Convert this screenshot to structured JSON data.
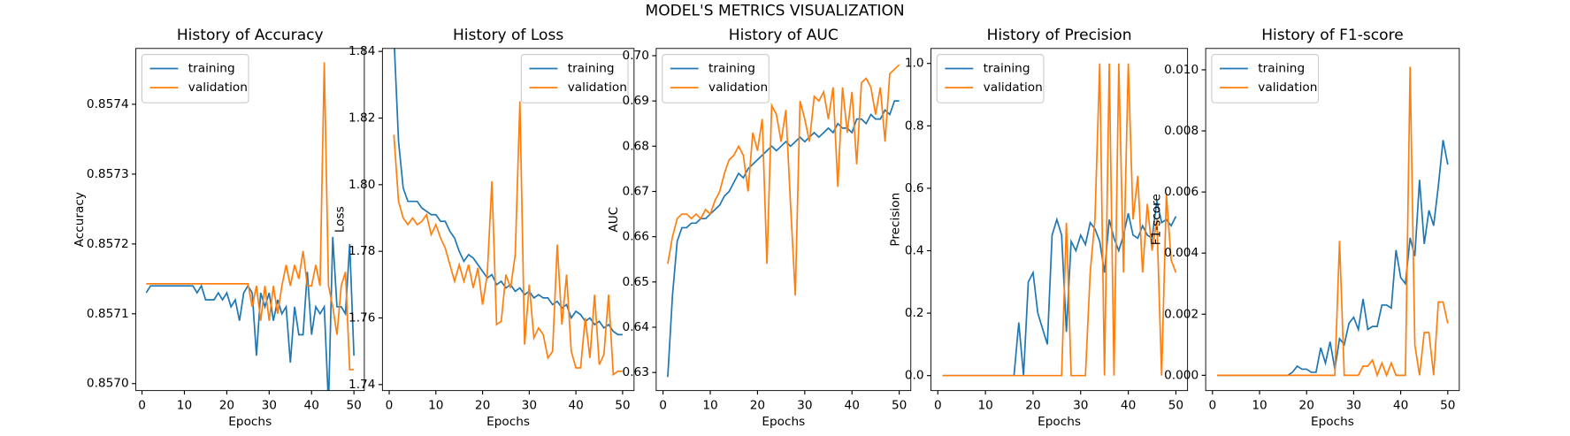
{
  "title": "MODEL'S METRICS VISUALIZATION",
  "chart_data": [
    {
      "type": "line",
      "title": "History of Accuracy",
      "x_label": "Epochs",
      "y_label": "Accuracy",
      "legend": "upper left",
      "x": [
        1,
        2,
        3,
        4,
        5,
        6,
        7,
        8,
        9,
        10,
        11,
        12,
        13,
        14,
        15,
        16,
        17,
        18,
        19,
        20,
        21,
        22,
        23,
        24,
        25,
        26,
        27,
        28,
        29,
        30,
        31,
        32,
        33,
        34,
        35,
        36,
        37,
        38,
        39,
        40,
        41,
        42,
        43,
        44,
        45,
        46,
        47,
        48,
        49,
        50
      ],
      "xlim": [
        -1.45,
        52.45
      ],
      "xticks": [
        0,
        10,
        20,
        30,
        40,
        50
      ],
      "ylim": [
        0.85699,
        0.85748
      ],
      "yticks": [
        {
          "value": 0.857,
          "label": "0.8570"
        },
        0.8571,
        0.8572,
        0.8573,
        0.8574
      ],
      "series": [
        {
          "name": "training",
          "color": "#1f77b4",
          "values": [
            0.85713,
            0.85714,
            0.85714,
            0.85714,
            0.85714,
            0.85714,
            0.85714,
            0.85714,
            0.85714,
            0.85714,
            0.85714,
            0.85714,
            0.85713,
            0.85714,
            0.85712,
            0.85712,
            0.85712,
            0.85713,
            0.85712,
            0.85713,
            0.85711,
            0.85712,
            0.85709,
            0.85713,
            0.85714,
            0.85713,
            0.85704,
            0.85713,
            0.85711,
            0.85713,
            0.85709,
            0.85712,
            0.8571,
            0.85711,
            0.85703,
            0.85711,
            0.85707,
            0.85707,
            0.85716,
            0.85707,
            0.85711,
            0.8571,
            0.85711,
            0.85697,
            0.85721,
            0.85711,
            0.85711,
            0.8571,
            0.8572,
            0.85704
          ]
        },
        {
          "name": "validation",
          "color": "#ff7f0e",
          "values": [
            0.857143,
            0.857143,
            0.857143,
            0.857143,
            0.857143,
            0.857143,
            0.857143,
            0.857143,
            0.857143,
            0.857143,
            0.857143,
            0.857143,
            0.857143,
            0.857143,
            0.857143,
            0.857143,
            0.857143,
            0.857143,
            0.857143,
            0.857143,
            0.857143,
            0.857143,
            0.857143,
            0.857143,
            0.857143,
            0.85711,
            0.85714,
            0.85709,
            0.85714,
            0.85709,
            0.85714,
            0.8571,
            0.85714,
            0.85717,
            0.85714,
            0.85717,
            0.85715,
            0.85719,
            0.85714,
            0.85714,
            0.85717,
            0.85714,
            0.85746,
            0.85714,
            0.85711,
            0.85707,
            0.85714,
            0.85716,
            0.85702,
            0.85702
          ]
        }
      ]
    },
    {
      "type": "line",
      "title": "History of Loss",
      "x_label": "Epochs",
      "y_label": "Loss",
      "legend": "upper right",
      "x": [
        1,
        2,
        3,
        4,
        5,
        6,
        7,
        8,
        9,
        10,
        11,
        12,
        13,
        14,
        15,
        16,
        17,
        18,
        19,
        20,
        21,
        22,
        23,
        24,
        25,
        26,
        27,
        28,
        29,
        30,
        31,
        32,
        33,
        34,
        35,
        36,
        37,
        38,
        39,
        40,
        41,
        42,
        43,
        44,
        45,
        46,
        47,
        48,
        49,
        50
      ],
      "xlim": [
        -1.45,
        52.45
      ],
      "xticks": [
        0,
        10,
        20,
        30,
        40,
        50
      ],
      "ylim": [
        1.7382,
        1.8409
      ],
      "yticks": [
        1.74,
        1.76,
        1.78,
        {
          "value": 1.8,
          "label": "1.80"
        },
        1.82,
        1.84
      ],
      "series": [
        {
          "name": "training",
          "color": "#1f77b4",
          "values": [
            1.845,
            1.813,
            1.799,
            1.795,
            1.795,
            1.795,
            1.793,
            1.792,
            1.791,
            1.791,
            1.789,
            1.789,
            1.786,
            1.784,
            1.78,
            1.777,
            1.779,
            1.778,
            1.776,
            1.774,
            1.772,
            1.773,
            1.77,
            1.771,
            1.769,
            1.77,
            1.768,
            1.769,
            1.767,
            1.768,
            1.766,
            1.767,
            1.766,
            1.766,
            1.764,
            1.765,
            1.763,
            1.764,
            1.76,
            1.762,
            1.761,
            1.759,
            1.76,
            1.758,
            1.759,
            1.757,
            1.758,
            1.756,
            1.755,
            1.755
          ]
        },
        {
          "name": "validation",
          "color": "#ff7f0e",
          "values": [
            1.815,
            1.795,
            1.79,
            1.788,
            1.79,
            1.788,
            1.789,
            1.791,
            1.785,
            1.788,
            1.784,
            1.781,
            1.776,
            1.771,
            1.776,
            1.771,
            1.776,
            1.769,
            1.775,
            1.764,
            1.773,
            1.801,
            1.758,
            1.759,
            1.773,
            1.769,
            1.779,
            1.825,
            1.752,
            1.77,
            1.754,
            1.757,
            1.755,
            1.748,
            1.75,
            1.782,
            1.758,
            1.773,
            1.75,
            1.745,
            1.745,
            1.76,
            1.748,
            1.767,
            1.746,
            1.749,
            1.767,
            1.743,
            1.744,
            1.744
          ]
        }
      ]
    },
    {
      "type": "line",
      "title": "History of AUC",
      "x_label": "Epochs",
      "y_label": "AUC",
      "legend": "upper left",
      "x": [
        1,
        2,
        3,
        4,
        5,
        6,
        7,
        8,
        9,
        10,
        11,
        12,
        13,
        14,
        15,
        16,
        17,
        18,
        19,
        20,
        21,
        22,
        23,
        24,
        25,
        26,
        27,
        28,
        29,
        30,
        31,
        32,
        33,
        34,
        35,
        36,
        37,
        38,
        39,
        40,
        41,
        42,
        43,
        44,
        45,
        46,
        47,
        48,
        49,
        50
      ],
      "xlim": [
        -1.45,
        52.45
      ],
      "xticks": [
        0,
        10,
        20,
        30,
        40,
        50
      ],
      "ylim": [
        0.626,
        0.7016
      ],
      "yticks": [
        0.63,
        0.64,
        0.65,
        0.66,
        0.67,
        0.68,
        0.69,
        {
          "value": 0.7,
          "label": "0.70"
        }
      ],
      "series": [
        {
          "name": "training",
          "color": "#1f77b4",
          "values": [
            0.629,
            0.647,
            0.659,
            0.662,
            0.662,
            0.663,
            0.663,
            0.664,
            0.664,
            0.665,
            0.666,
            0.667,
            0.669,
            0.67,
            0.672,
            0.674,
            0.673,
            0.675,
            0.676,
            0.677,
            0.678,
            0.679,
            0.68,
            0.679,
            0.68,
            0.681,
            0.68,
            0.681,
            0.682,
            0.681,
            0.682,
            0.683,
            0.682,
            0.683,
            0.684,
            0.683,
            0.685,
            0.684,
            0.684,
            0.683,
            0.686,
            0.686,
            0.685,
            0.687,
            0.686,
            0.686,
            0.688,
            0.687,
            0.69,
            0.69
          ]
        },
        {
          "name": "validation",
          "color": "#ff7f0e",
          "values": [
            0.654,
            0.66,
            0.664,
            0.665,
            0.665,
            0.664,
            0.665,
            0.664,
            0.666,
            0.665,
            0.668,
            0.67,
            0.674,
            0.677,
            0.678,
            0.68,
            0.678,
            0.67,
            0.683,
            0.679,
            0.686,
            0.654,
            0.689,
            0.687,
            0.681,
            0.688,
            0.667,
            0.647,
            0.69,
            0.686,
            0.681,
            0.691,
            0.69,
            0.692,
            0.686,
            0.693,
            0.671,
            0.693,
            0.683,
            0.692,
            0.676,
            0.694,
            0.695,
            0.693,
            0.687,
            0.693,
            0.681,
            0.696,
            0.697,
            0.698
          ]
        }
      ]
    },
    {
      "type": "line",
      "title": "History of Precision",
      "x_label": "Epochs",
      "y_label": "Precision",
      "legend": "upper left",
      "x": [
        1,
        2,
        3,
        4,
        5,
        6,
        7,
        8,
        9,
        10,
        11,
        12,
        13,
        14,
        15,
        16,
        17,
        18,
        19,
        20,
        21,
        22,
        23,
        24,
        25,
        26,
        27,
        28,
        29,
        30,
        31,
        32,
        33,
        34,
        35,
        36,
        37,
        38,
        39,
        40,
        41,
        42,
        43,
        44,
        45,
        46,
        47,
        48,
        49,
        50
      ],
      "xlim": [
        -1.45,
        52.45
      ],
      "xticks": [
        0,
        10,
        20,
        30,
        40,
        50
      ],
      "ylim": [
        -0.048,
        1.048
      ],
      "yticks": [
        {
          "value": 0,
          "label": "0.0"
        },
        0.2,
        0.4,
        0.6,
        0.8,
        {
          "value": 1,
          "label": "1.0"
        }
      ],
      "series": [
        {
          "name": "training",
          "color": "#1f77b4",
          "values": [
            0,
            0,
            0,
            0,
            0,
            0,
            0,
            0,
            0,
            0,
            0,
            0,
            0,
            0,
            0,
            0,
            0.17,
            0,
            0.3,
            0.33,
            0.2,
            0.15,
            0.1,
            0.45,
            0.5,
            0.45,
            0.14,
            0.43,
            0.4,
            0.45,
            0.42,
            0.49,
            0.47,
            0.43,
            0.33,
            0.5,
            0.44,
            0.4,
            0.45,
            0.52,
            0.45,
            0.44,
            0.48,
            0.45,
            0.44,
            0.56,
            0.49,
            0.5,
            0.48,
            0.51
          ]
        },
        {
          "name": "validation",
          "color": "#ff7f0e",
          "values": [
            0,
            0,
            0,
            0,
            0,
            0,
            0,
            0,
            0,
            0,
            0,
            0,
            0,
            0,
            0,
            0,
            0,
            0,
            0,
            0,
            0,
            0,
            0,
            0,
            0,
            0,
            0.49,
            0,
            0,
            0,
            0,
            0.33,
            0.5,
            1,
            0,
            1,
            0,
            1,
            0.33,
            1,
            0.5,
            0.64,
            0.33,
            0.55,
            0.4,
            0.5,
            0,
            0.58,
            0.37,
            0.33
          ]
        }
      ]
    },
    {
      "type": "line",
      "title": "History of F1-score",
      "x_label": "Epochs",
      "y_label": "F1-score",
      "legend": "upper left",
      "x": [
        1,
        2,
        3,
        4,
        5,
        6,
        7,
        8,
        9,
        10,
        11,
        12,
        13,
        14,
        15,
        16,
        17,
        18,
        19,
        20,
        21,
        22,
        23,
        24,
        25,
        26,
        27,
        28,
        29,
        30,
        31,
        32,
        33,
        34,
        35,
        36,
        37,
        38,
        39,
        40,
        41,
        42,
        43,
        44,
        45,
        46,
        47,
        48,
        49,
        50
      ],
      "xlim": [
        -1.45,
        52.45
      ],
      "xticks": [
        0,
        10,
        20,
        30,
        40,
        50
      ],
      "ylim": [
        -0.0005,
        0.0107
      ],
      "yticks": [
        {
          "value": 0,
          "label": "0.000"
        },
        {
          "value": 0.002,
          "label": "0.002"
        },
        {
          "value": 0.004,
          "label": "0.004"
        },
        {
          "value": 0.006,
          "label": "0.006"
        },
        {
          "value": 0.008,
          "label": "0.008"
        },
        {
          "value": 0.01,
          "label": "0.010"
        }
      ],
      "series": [
        {
          "name": "training",
          "color": "#1f77b4",
          "values": [
            0,
            0,
            0,
            0,
            0,
            0,
            0,
            0,
            0,
            0,
            0,
            0,
            0,
            0,
            0,
            0,
            0.0001,
            0.0003,
            0.0002,
            0.0002,
            0.0001,
            0.0001,
            0.0009,
            0.0004,
            0.0011,
            0.0002,
            0.0012,
            0.001,
            0.0017,
            0.0019,
            0.0015,
            0.0025,
            0.0015,
            0.0016,
            0.0016,
            0.0023,
            0.0023,
            0.0022,
            0.0041,
            0.0032,
            0.003,
            0.0045,
            0.0039,
            0.0064,
            0.0043,
            0.0054,
            0.0049,
            0.0062,
            0.0077,
            0.0069
          ]
        },
        {
          "name": "validation",
          "color": "#ff7f0e",
          "values": [
            0,
            0,
            0,
            0,
            0,
            0,
            0,
            0,
            0,
            0,
            0,
            0,
            0,
            0,
            0,
            0,
            0,
            0,
            0,
            0,
            0,
            0,
            0,
            0,
            0,
            0,
            0.0044,
            0,
            0,
            0,
            0,
            0.0003,
            0.0003,
            0.0005,
            0,
            0.0004,
            0,
            0.0004,
            0,
            0,
            0,
            0.0101,
            0.001,
            0,
            0.0014,
            0.0014,
            0,
            0.0024,
            0.0024,
            0.0017
          ]
        }
      ]
    }
  ]
}
